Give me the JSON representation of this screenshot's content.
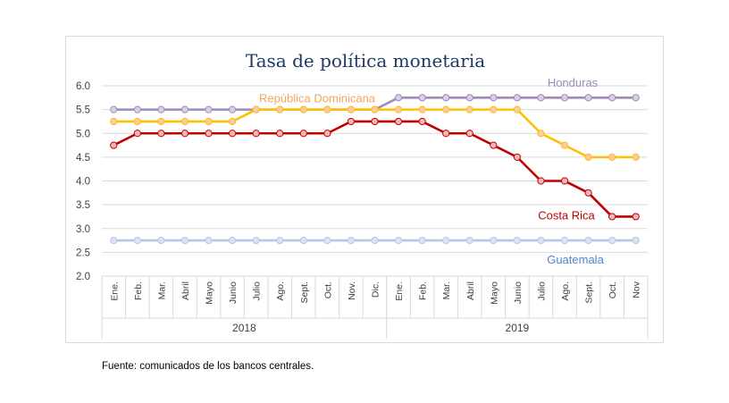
{
  "source_note": "Fuente: comunicados de los bancos centrales.",
  "chart_data": {
    "type": "line",
    "title": "Tasa de política monetaria",
    "categories": [
      "Ene.",
      "Feb.",
      "Mar.",
      "Abril",
      "Mayo",
      "Junio",
      "Julio",
      "Ago.",
      "Sept.",
      "Oct.",
      "Nov.",
      "Dic.",
      "Ene.",
      "Feb.",
      "Mar.",
      "Abril",
      "Mayo",
      "Junio",
      "Julio",
      "Ago.",
      "Sept.",
      "Oct.",
      "Nov"
    ],
    "year_groups": [
      {
        "label": "2018",
        "count": 12
      },
      {
        "label": "2019",
        "count": 11
      }
    ],
    "ylim": [
      2.0,
      6.0
    ],
    "yticks": [
      "2.0",
      "2.5",
      "3.0",
      "3.5",
      "4.0",
      "4.5",
      "5.0",
      "5.5",
      "6.0"
    ],
    "grid": true,
    "series": [
      {
        "name": "Honduras",
        "color": "#9f8bb5",
        "marker_fill": "#d9cfe6",
        "values": [
          5.5,
          5.5,
          5.5,
          5.5,
          5.5,
          5.5,
          5.5,
          5.5,
          5.5,
          5.5,
          5.5,
          5.5,
          5.75,
          5.75,
          5.75,
          5.75,
          5.75,
          5.75,
          5.75,
          5.75,
          5.75,
          5.75,
          5.75
        ]
      },
      {
        "name": "República Dominicana",
        "color": "#ffc000",
        "marker_fill": "#f8cbad",
        "label_color": "#f4a460",
        "values": [
          5.25,
          5.25,
          5.25,
          5.25,
          5.25,
          5.25,
          5.5,
          5.5,
          5.5,
          5.5,
          5.5,
          5.5,
          5.5,
          5.5,
          5.5,
          5.5,
          5.5,
          5.5,
          5.0,
          4.75,
          4.5,
          4.5,
          4.5
        ]
      },
      {
        "name": "Costa Rica",
        "color": "#c00000",
        "marker_fill": "#f4b6b6",
        "values": [
          4.75,
          5.0,
          5.0,
          5.0,
          5.0,
          5.0,
          5.0,
          5.0,
          5.0,
          5.0,
          5.25,
          5.25,
          5.25,
          5.25,
          5.0,
          5.0,
          4.75,
          4.5,
          4.0,
          4.0,
          3.75,
          3.25,
          3.25
        ]
      },
      {
        "name": "Guatemala",
        "color": "#b4c7e7",
        "marker_fill": "#dae3f3",
        "label_color": "#4a86c8",
        "values": [
          2.75,
          2.75,
          2.75,
          2.75,
          2.75,
          2.75,
          2.75,
          2.75,
          2.75,
          2.75,
          2.75,
          2.75,
          2.75,
          2.75,
          2.75,
          2.75,
          2.75,
          2.75,
          2.75,
          2.75,
          2.75,
          2.75,
          2.75
        ]
      }
    ]
  }
}
